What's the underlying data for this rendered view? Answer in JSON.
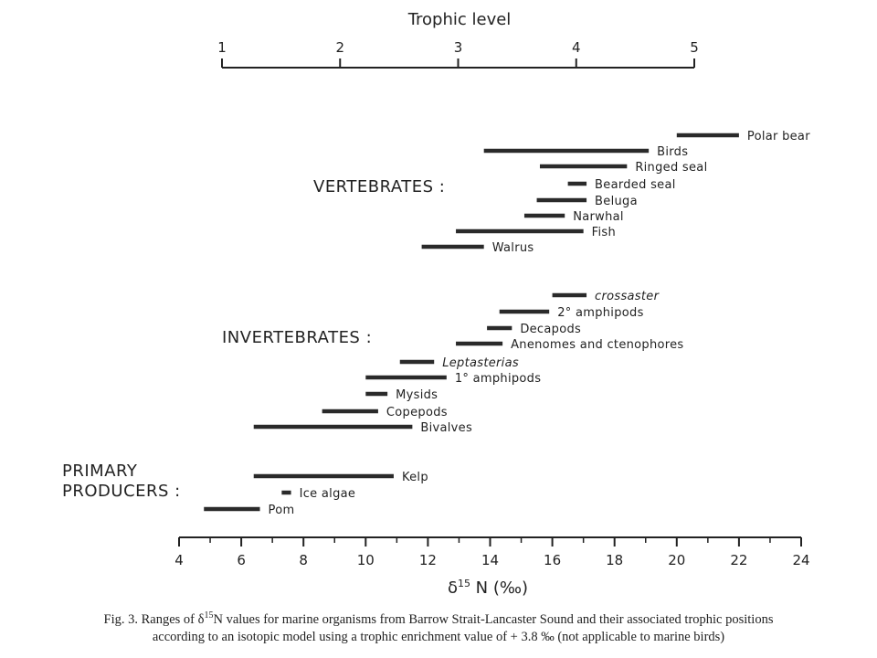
{
  "chart_data": {
    "type": "range-bar",
    "top_axis": {
      "title": "Trophic level",
      "ticks": [
        "1",
        "2",
        "3",
        "4",
        "5"
      ],
      "range": [
        1,
        5
      ]
    },
    "bottom_axis": {
      "title_prefix": "δ",
      "title_sup": "15",
      "title_suffix": " N (‰)",
      "ticks": [
        "4",
        "6",
        "8",
        "10",
        "12",
        "14",
        "16",
        "18",
        "20",
        "22",
        "24"
      ],
      "range": [
        4,
        24
      ]
    },
    "groups": [
      {
        "label": "VERTEBRATES :",
        "items": [
          {
            "name": "Polar bear",
            "min": 20.0,
            "max": 22.0,
            "italic": false
          },
          {
            "name": "Birds",
            "min": 13.8,
            "max": 19.1,
            "italic": false
          },
          {
            "name": "Ringed seal",
            "min": 15.6,
            "max": 18.4,
            "italic": false
          },
          {
            "name": "Bearded seal",
            "min": 16.5,
            "max": 17.1,
            "italic": false
          },
          {
            "name": "Beluga",
            "min": 15.5,
            "max": 17.1,
            "italic": false
          },
          {
            "name": "Narwhal",
            "min": 15.1,
            "max": 16.4,
            "italic": false
          },
          {
            "name": "Fish",
            "min": 12.9,
            "max": 17.0,
            "italic": false
          },
          {
            "name": "Walrus",
            "min": 11.8,
            "max": 13.8,
            "italic": false
          }
        ]
      },
      {
        "label": "INVERTEBRATES :",
        "items": [
          {
            "name": "crossaster",
            "min": 16.0,
            "max": 17.1,
            "italic": true
          },
          {
            "name": "2° amphipods",
            "min": 14.3,
            "max": 15.9,
            "italic": false
          },
          {
            "name": "Decapods",
            "min": 13.9,
            "max": 14.7,
            "italic": false
          },
          {
            "name": "Anenomes and ctenophores",
            "min": 12.9,
            "max": 14.4,
            "italic": false
          },
          {
            "name": "Leptasterias",
            "min": 11.1,
            "max": 12.2,
            "italic": true
          },
          {
            "name": "1° amphipods",
            "min": 10.0,
            "max": 12.6,
            "italic": false
          },
          {
            "name": "Mysids",
            "min": 10.0,
            "max": 10.7,
            "italic": false
          },
          {
            "name": "Copepods",
            "min": 8.6,
            "max": 10.4,
            "italic": false
          },
          {
            "name": "Bivalves",
            "min": 6.4,
            "max": 11.5,
            "italic": false
          }
        ]
      },
      {
        "label_line1": "PRIMARY",
        "label_line2": "PRODUCERS :",
        "items": [
          {
            "name": "Kelp",
            "min": 6.4,
            "max": 10.9,
            "italic": false
          },
          {
            "name": "Ice algae",
            "min": 7.3,
            "max": 7.6,
            "italic": false
          },
          {
            "name": "Pom",
            "min": 4.8,
            "max": 6.6,
            "italic": false
          }
        ]
      }
    ]
  },
  "caption": {
    "line1_prefix": "Fig. 3. Ranges of δ",
    "line1_sup": "15",
    "line1_suffix": "N values for marine organisms from Barrow Strait-Lancaster Sound and their associated trophic positions",
    "line2": "according to an isotopic model using a trophic enrichment value of + 3.8 ‰ (not applicable to marine birds)"
  }
}
